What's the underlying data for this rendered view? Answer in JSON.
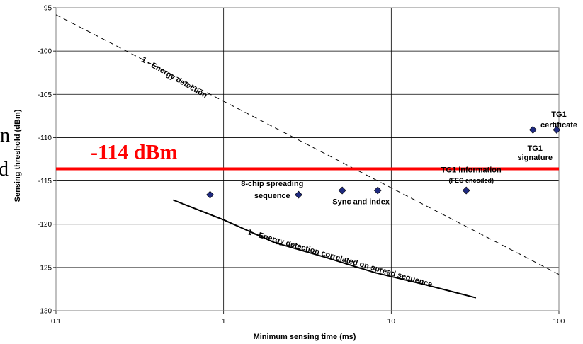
{
  "chart_data": {
    "type": "scatter",
    "xlabel": "Minimum sensing time (ms)",
    "ylabel": "Sensing threshold (dBm)",
    "x_scale": "log",
    "xlim": [
      0.1,
      100
    ],
    "ylim": [
      -130,
      -95
    ],
    "x_ticks": [
      "0.1",
      "1",
      "10",
      "100"
    ],
    "y_ticks": [
      "-95",
      "-100",
      "-105",
      "-110",
      "-115",
      "-120",
      "-125",
      "-130"
    ],
    "grid": true,
    "threshold_label": "-114 dBm",
    "threshold_value": -113.6,
    "threshold_color": "#ff0000",
    "marker_color": "#1f2a80",
    "lines": [
      {
        "name": "1 - Energy detection",
        "style": "dashed",
        "x": [
          0.1,
          100
        ],
        "y": [
          -95.8,
          -125.8
        ]
      },
      {
        "name": "1 - Energy detection correlated on spread sequence",
        "style": "solid",
        "x": [
          0.5,
          1,
          2,
          4,
          8,
          16,
          32
        ],
        "y": [
          -117.2,
          -119.5,
          -122.1,
          -123.8,
          -125.6,
          -127.0,
          -128.5
        ]
      }
    ],
    "points": [
      {
        "x": 0.83,
        "y": -116.6
      },
      {
        "x": 2.8,
        "y": -116.6
      },
      {
        "x": 5.1,
        "y": -116.1
      },
      {
        "x": 8.3,
        "y": -116.1
      },
      {
        "x": 28,
        "y": -116.1
      },
      {
        "x": 70,
        "y": -109.1
      },
      {
        "x": 97,
        "y": -109.1
      }
    ],
    "annotations": [
      {
        "text": "8-chip spreading",
        "x": 1.95,
        "y": -115.6,
        "size": "normal"
      },
      {
        "text": "sequence",
        "x": 1.95,
        "y": -117.0,
        "size": "normal"
      },
      {
        "text": "Sync and index",
        "x": 6.6,
        "y": -117.7,
        "size": "normal"
      },
      {
        "text": "TG1 information",
        "x": 30,
        "y": -114.0,
        "size": "normal"
      },
      {
        "text": "(FEC encoded)",
        "x": 30,
        "y": -115.2,
        "size": "small"
      },
      {
        "text": "TG1",
        "x": 72,
        "y": -111.5,
        "size": "normal"
      },
      {
        "text": "signature",
        "x": 72,
        "y": -112.6,
        "size": "normal"
      },
      {
        "text": "TG1",
        "x": 100,
        "y": -107.6,
        "size": "normal"
      },
      {
        "text": "certificate",
        "x": 100,
        "y": -108.8,
        "size": "normal"
      }
    ],
    "line_labels": [
      {
        "text": "1 - Energy detection",
        "x": 0.5,
        "y": -103.3,
        "angle": 30
      },
      {
        "text": "1 - Energy detection correlated on spread sequence",
        "x": 4.9,
        "y": -124.2,
        "angle": 16
      }
    ],
    "side_fragments": [
      "n",
      "d"
    ]
  }
}
